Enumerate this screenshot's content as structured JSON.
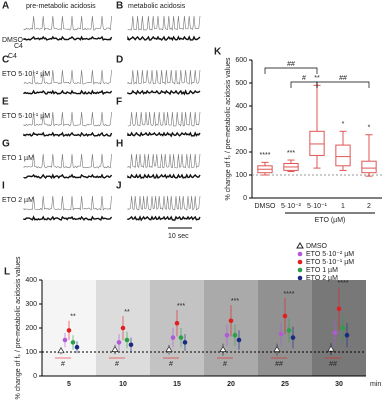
{
  "traces": {
    "headers": [
      "pre-metabolic acidosis",
      "metabolic acidosis"
    ],
    "rows": [
      {
        "left": "A",
        "right": "B",
        "label": "DMSO"
      },
      {
        "left": "C",
        "right": "D",
        "label": "ETO 5·10⁻² µM"
      },
      {
        "left": "E",
        "right": "F",
        "label": "ETO 5·10⁻¹ µM"
      },
      {
        "left": "G",
        "right": "H",
        "label": "ETO 1 µM"
      },
      {
        "left": "I",
        "right": "J",
        "label": "ETO 2 µM"
      }
    ],
    "c4_labels": [
      "C4",
      "C4"
    ],
    "scale": "10 sec"
  },
  "chart_data": [
    {
      "type": "box",
      "panel": "K",
      "ylabel": "% change of fₛ / pre-metabolic acidosis values",
      "xlabel": "ETO (µM)",
      "categories": [
        "DMSO",
        "5·10⁻²",
        "5·10⁻¹",
        "1",
        "2"
      ],
      "color": "#e05555",
      "min": [
        100,
        115,
        130,
        120,
        95
      ],
      "q1": [
        110,
        120,
        185,
        140,
        110
      ],
      "median": [
        125,
        135,
        235,
        180,
        130
      ],
      "q3": [
        140,
        150,
        290,
        230,
        160
      ],
      "max": [
        155,
        165,
        490,
        290,
        275
      ],
      "annotations": [
        "****",
        "***",
        "**",
        "*",
        "*"
      ],
      "bracket_labels": [
        "##",
        "#",
        "##"
      ],
      "ylim": [
        0,
        600
      ],
      "yticks": [
        0,
        100,
        200,
        300,
        400,
        500,
        600
      ]
    },
    {
      "type": "scatter",
      "panel": "L",
      "ylabel": "% change of fₛ / pre-metabolic acidosis values",
      "xlabel": "min",
      "categories": [
        "5",
        "10",
        "15",
        "20",
        "25",
        "30"
      ],
      "series": [
        {
          "name": "DMSO",
          "color": "#222222",
          "marker": "triangle-open",
          "values": [
            105,
            110,
            110,
            110,
            110,
            112
          ],
          "errors": [
            15,
            20,
            20,
            25,
            25,
            25
          ]
        },
        {
          "name": "ETO 5·10⁻² µM",
          "color": "#b05ad8",
          "marker": "circle",
          "values": [
            150,
            140,
            160,
            170,
            175,
            180
          ],
          "errors": [
            30,
            35,
            40,
            45,
            50,
            55
          ]
        },
        {
          "name": "ETO 5·10⁻¹ µM",
          "color": "#e02020",
          "marker": "circle",
          "values": [
            190,
            200,
            220,
            230,
            250,
            280
          ],
          "errors": [
            40,
            50,
            55,
            65,
            75,
            90
          ]
        },
        {
          "name": "ETO 1 µM",
          "color": "#2aa04a",
          "marker": "circle",
          "values": [
            140,
            150,
            160,
            170,
            190,
            200
          ],
          "errors": [
            30,
            35,
            40,
            45,
            50,
            55
          ]
        },
        {
          "name": "ETO 2 µM",
          "color": "#1a2a80",
          "marker": "circle",
          "values": [
            120,
            130,
            140,
            150,
            160,
            170
          ],
          "errors": [
            25,
            30,
            35,
            40,
            45,
            50
          ]
        }
      ],
      "annotations": [
        "**",
        "**",
        "***",
        "***",
        "****",
        "****"
      ],
      "hash_labels": [
        "#",
        "#",
        "#",
        "#",
        "##",
        "##"
      ],
      "ylim": [
        0,
        400
      ],
      "yticks": [
        0,
        100,
        200,
        300,
        400
      ]
    }
  ]
}
